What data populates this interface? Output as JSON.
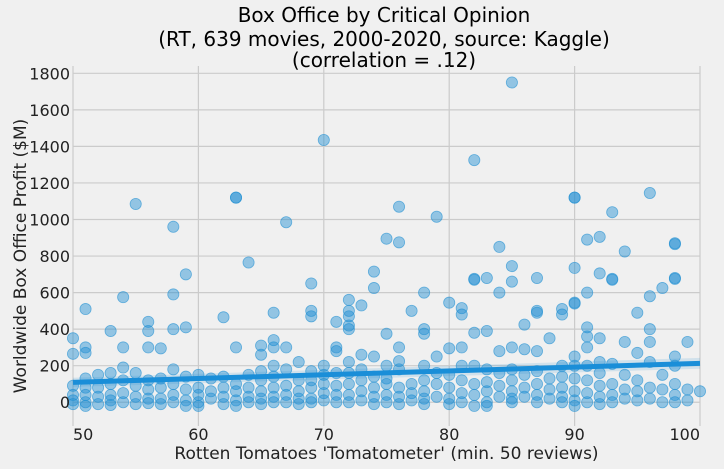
{
  "chart_data": {
    "type": "scatter",
    "title_lines": [
      "Box Office by Critical Opinion",
      "(RT, 639 movies, 2000-2020, source: Kaggle)",
      "(correlation = .12)"
    ],
    "xlabel": "Rotten Tomatoes 'Tomatometer' (min. 50 reviews)",
    "ylabel": "Worldwide Box Office Profit ($M)",
    "xlim": [
      50,
      100
    ],
    "ylim": [
      -130,
      1840
    ],
    "xticks": [
      50,
      60,
      70,
      80,
      90,
      100
    ],
    "yticks": [
      0,
      200,
      400,
      600,
      800,
      1000,
      1200,
      1400,
      1600,
      1800
    ],
    "grid": true,
    "regression": {
      "x": [
        50,
        100
      ],
      "y": [
        109,
        213
      ],
      "ci_halfwidth": [
        25,
        30
      ]
    },
    "points": [
      [
        50,
        350
      ],
      [
        50,
        265
      ],
      [
        50,
        90
      ],
      [
        50,
        40
      ],
      [
        50,
        10
      ],
      [
        50,
        -10
      ],
      [
        51,
        510
      ],
      [
        51,
        300
      ],
      [
        51,
        270
      ],
      [
        51,
        130
      ],
      [
        51,
        80
      ],
      [
        51,
        40
      ],
      [
        51,
        0
      ],
      [
        51,
        -20
      ],
      [
        52,
        150
      ],
      [
        52,
        80
      ],
      [
        52,
        30
      ],
      [
        52,
        -10
      ],
      [
        53,
        390
      ],
      [
        53,
        160
      ],
      [
        53,
        100
      ],
      [
        53,
        40
      ],
      [
        53,
        10
      ],
      [
        53,
        -15
      ],
      [
        54,
        575
      ],
      [
        54,
        300
      ],
      [
        54,
        190
      ],
      [
        54,
        120
      ],
      [
        54,
        50
      ],
      [
        54,
        0
      ],
      [
        55,
        1085
      ],
      [
        55,
        160
      ],
      [
        55,
        90
      ],
      [
        55,
        30
      ],
      [
        55,
        -10
      ],
      [
        56,
        440
      ],
      [
        56,
        390
      ],
      [
        56,
        300
      ],
      [
        56,
        120
      ],
      [
        56,
        70
      ],
      [
        56,
        20
      ],
      [
        56,
        -5
      ],
      [
        57,
        295
      ],
      [
        57,
        130
      ],
      [
        57,
        80
      ],
      [
        57,
        20
      ],
      [
        57,
        -10
      ],
      [
        58,
        960
      ],
      [
        58,
        590
      ],
      [
        58,
        400
      ],
      [
        58,
        180
      ],
      [
        58,
        100
      ],
      [
        58,
        40
      ],
      [
        58,
        0
      ],
      [
        59,
        700
      ],
      [
        59,
        410
      ],
      [
        59,
        140
      ],
      [
        59,
        70
      ],
      [
        59,
        10
      ],
      [
        59,
        -20
      ],
      [
        60,
        150
      ],
      [
        60,
        80
      ],
      [
        60,
        40
      ],
      [
        60,
        0
      ],
      [
        60,
        -20
      ],
      [
        61,
        130
      ],
      [
        61,
        60
      ],
      [
        61,
        20
      ],
      [
        62,
        465
      ],
      [
        62,
        140
      ],
      [
        62,
        80
      ],
      [
        62,
        30
      ],
      [
        62,
        -10
      ],
      [
        63,
        1120
      ],
      [
        63,
        1120
      ],
      [
        63,
        300
      ],
      [
        63,
        100
      ],
      [
        63,
        60
      ],
      [
        63,
        10
      ],
      [
        63,
        -20
      ],
      [
        64,
        765
      ],
      [
        64,
        150
      ],
      [
        64,
        80
      ],
      [
        64,
        30
      ],
      [
        64,
        0
      ],
      [
        65,
        310
      ],
      [
        65,
        260
      ],
      [
        65,
        170
      ],
      [
        65,
        120
      ],
      [
        65,
        60
      ],
      [
        65,
        20
      ],
      [
        65,
        -10
      ],
      [
        66,
        340
      ],
      [
        66,
        300
      ],
      [
        66,
        490
      ],
      [
        66,
        200
      ],
      [
        66,
        140
      ],
      [
        66,
        80
      ],
      [
        66,
        30
      ],
      [
        66,
        0
      ],
      [
        67,
        985
      ],
      [
        67,
        300
      ],
      [
        67,
        180
      ],
      [
        67,
        90
      ],
      [
        67,
        40
      ],
      [
        67,
        0
      ],
      [
        68,
        220
      ],
      [
        68,
        120
      ],
      [
        68,
        60
      ],
      [
        68,
        20
      ],
      [
        68,
        -10
      ],
      [
        69,
        650
      ],
      [
        69,
        500
      ],
      [
        69,
        470
      ],
      [
        69,
        170
      ],
      [
        69,
        120
      ],
      [
        69,
        80
      ],
      [
        69,
        20
      ],
      [
        69,
        0
      ],
      [
        70,
        1435
      ],
      [
        70,
        200
      ],
      [
        70,
        150
      ],
      [
        70,
        100
      ],
      [
        70,
        50
      ],
      [
        70,
        10
      ],
      [
        71,
        440
      ],
      [
        71,
        300
      ],
      [
        71,
        280
      ],
      [
        71,
        160
      ],
      [
        71,
        90
      ],
      [
        71,
        40
      ],
      [
        71,
        0
      ],
      [
        72,
        560
      ],
      [
        72,
        500
      ],
      [
        72,
        470
      ],
      [
        72,
        420
      ],
      [
        72,
        400
      ],
      [
        72,
        220
      ],
      [
        72,
        160
      ],
      [
        72,
        100
      ],
      [
        72,
        40
      ],
      [
        72,
        0
      ],
      [
        73,
        530
      ],
      [
        73,
        260
      ],
      [
        73,
        180
      ],
      [
        73,
        120
      ],
      [
        73,
        60
      ],
      [
        73,
        10
      ],
      [
        74,
        715
      ],
      [
        74,
        625
      ],
      [
        74,
        250
      ],
      [
        74,
        140
      ],
      [
        74,
        80
      ],
      [
        74,
        30
      ],
      [
        74,
        -10
      ],
      [
        75,
        895
      ],
      [
        75,
        375
      ],
      [
        75,
        200
      ],
      [
        75,
        130
      ],
      [
        75,
        100
      ],
      [
        75,
        40
      ],
      [
        75,
        0
      ],
      [
        76,
        1070
      ],
      [
        76,
        875
      ],
      [
        76,
        300
      ],
      [
        76,
        225
      ],
      [
        76,
        180
      ],
      [
        76,
        80
      ],
      [
        76,
        30
      ],
      [
        76,
        -10
      ],
      [
        77,
        500
      ],
      [
        77,
        100
      ],
      [
        77,
        50
      ],
      [
        77,
        10
      ],
      [
        78,
        600
      ],
      [
        78,
        400
      ],
      [
        78,
        375
      ],
      [
        78,
        200
      ],
      [
        78,
        120
      ],
      [
        78,
        60
      ],
      [
        78,
        20
      ],
      [
        78,
        -10
      ],
      [
        79,
        1015
      ],
      [
        79,
        250
      ],
      [
        79,
        160
      ],
      [
        79,
        100
      ],
      [
        79,
        30
      ],
      [
        80,
        545
      ],
      [
        80,
        295
      ],
      [
        80,
        150
      ],
      [
        80,
        80
      ],
      [
        80,
        20
      ],
      [
        80,
        -10
      ],
      [
        81,
        515
      ],
      [
        81,
        480
      ],
      [
        81,
        300
      ],
      [
        81,
        200
      ],
      [
        81,
        120
      ],
      [
        81,
        50
      ],
      [
        81,
        0
      ],
      [
        82,
        1325
      ],
      [
        82,
        675
      ],
      [
        82,
        670
      ],
      [
        82,
        380
      ],
      [
        82,
        200
      ],
      [
        82,
        100
      ],
      [
        82,
        40
      ],
      [
        82,
        -20
      ],
      [
        83,
        680
      ],
      [
        83,
        390
      ],
      [
        83,
        180
      ],
      [
        83,
        110
      ],
      [
        83,
        60
      ],
      [
        83,
        0
      ],
      [
        83,
        -20
      ],
      [
        84,
        850
      ],
      [
        84,
        600
      ],
      [
        84,
        280
      ],
      [
        84,
        160
      ],
      [
        84,
        90
      ],
      [
        84,
        30
      ],
      [
        85,
        1750
      ],
      [
        85,
        745
      ],
      [
        85,
        660
      ],
      [
        85,
        300
      ],
      [
        85,
        180
      ],
      [
        85,
        120
      ],
      [
        85,
        60
      ],
      [
        85,
        20
      ],
      [
        85,
        0
      ],
      [
        86,
        425
      ],
      [
        86,
        290
      ],
      [
        86,
        150
      ],
      [
        86,
        80
      ],
      [
        86,
        30
      ],
      [
        87,
        680
      ],
      [
        87,
        500
      ],
      [
        87,
        490
      ],
      [
        87,
        280
      ],
      [
        87,
        170
      ],
      [
        87,
        100
      ],
      [
        87,
        40
      ],
      [
        87,
        0
      ],
      [
        88,
        350
      ],
      [
        88,
        130
      ],
      [
        88,
        70
      ],
      [
        88,
        20
      ],
      [
        89,
        510
      ],
      [
        89,
        480
      ],
      [
        89,
        200
      ],
      [
        89,
        140
      ],
      [
        89,
        80
      ],
      [
        89,
        30
      ],
      [
        89,
        0
      ],
      [
        90,
        1120
      ],
      [
        90,
        1120
      ],
      [
        90,
        735
      ],
      [
        90,
        545
      ],
      [
        90,
        540
      ],
      [
        90,
        250
      ],
      [
        90,
        200
      ],
      [
        90,
        130
      ],
      [
        90,
        60
      ],
      [
        90,
        10
      ],
      [
        90,
        -20
      ],
      [
        91,
        890
      ],
      [
        91,
        600
      ],
      [
        91,
        410
      ],
      [
        91,
        360
      ],
      [
        91,
        300
      ],
      [
        91,
        200
      ],
      [
        91,
        120
      ],
      [
        91,
        50
      ],
      [
        91,
        0
      ],
      [
        92,
        905
      ],
      [
        92,
        705
      ],
      [
        92,
        350
      ],
      [
        92,
        220
      ],
      [
        92,
        160
      ],
      [
        92,
        90
      ],
      [
        92,
        30
      ],
      [
        92,
        -10
      ],
      [
        93,
        1040
      ],
      [
        93,
        675
      ],
      [
        93,
        670
      ],
      [
        93,
        210
      ],
      [
        93,
        100
      ],
      [
        93,
        40
      ],
      [
        93,
        0
      ],
      [
        94,
        825
      ],
      [
        94,
        330
      ],
      [
        94,
        150
      ],
      [
        94,
        70
      ],
      [
        94,
        20
      ],
      [
        95,
        490
      ],
      [
        95,
        270
      ],
      [
        95,
        120
      ],
      [
        95,
        60
      ],
      [
        95,
        10
      ],
      [
        96,
        1145
      ],
      [
        96,
        580
      ],
      [
        96,
        400
      ],
      [
        96,
        330
      ],
      [
        96,
        220
      ],
      [
        96,
        80
      ],
      [
        96,
        20
      ],
      [
        97,
        625
      ],
      [
        97,
        150
      ],
      [
        97,
        70
      ],
      [
        97,
        0
      ],
      [
        98,
        870
      ],
      [
        98,
        865
      ],
      [
        98,
        680
      ],
      [
        98,
        675
      ],
      [
        98,
        250
      ],
      [
        98,
        200
      ],
      [
        98,
        100
      ],
      [
        98,
        40
      ],
      [
        98,
        0
      ],
      [
        99,
        330
      ],
      [
        99,
        70
      ],
      [
        99,
        10
      ],
      [
        100,
        60
      ]
    ]
  }
}
